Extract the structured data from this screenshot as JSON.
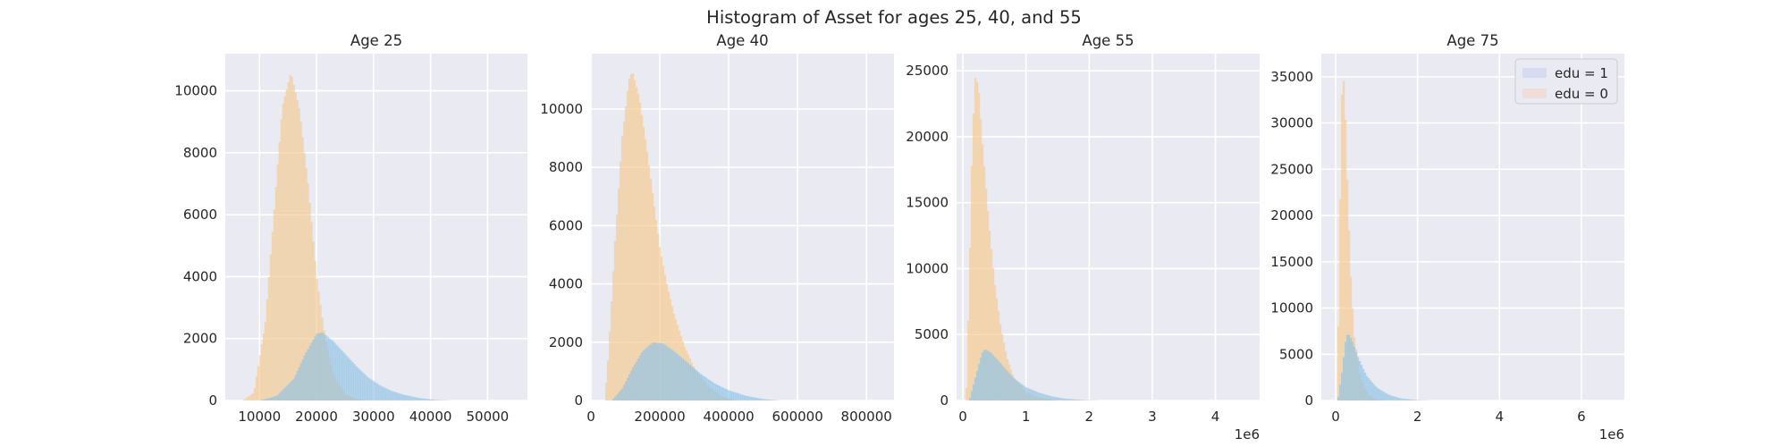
{
  "figure": {
    "title": "Histogram of Asset for ages 25, 40, and 55"
  },
  "colors": {
    "edu1_fill": "#8ec3e6",
    "edu0_fill": "#f5c98e",
    "overlap_tone": "#b5bc96",
    "legend_swatch_edu1": "#d7dbf0",
    "legend_swatch_edu0": "#f0ddd8"
  },
  "chart_data": [
    {
      "type": "histogram",
      "title": "Age 25",
      "xlabel": "",
      "ylabel": "",
      "xlim": [
        4000,
        57000
      ],
      "ylim": [
        0,
        11200
      ],
      "xticks": [
        10000,
        20000,
        30000,
        40000,
        50000
      ],
      "xtick_labels": [
        "10000",
        "20000",
        "30000",
        "40000",
        "50000"
      ],
      "yticks": [
        0,
        2000,
        4000,
        6000,
        8000,
        10000
      ],
      "ytick_labels": [
        "0",
        "2000",
        "4000",
        "6000",
        "8000",
        "10000"
      ],
      "offset_label": "",
      "grid": true,
      "series": [
        {
          "name": "edu = 0",
          "peak_x": 15500,
          "peak_count": 10600,
          "x": [
            7000,
            9000,
            11000,
            12500,
            14000,
            15500,
            17000,
            18500,
            20000,
            21500,
            23000,
            25000,
            27000,
            29000
          ],
          "counts": [
            0,
            250,
            2500,
            6000,
            9500,
            10600,
            9400,
            7000,
            4000,
            2000,
            800,
            200,
            50,
            0
          ]
        },
        {
          "name": "edu = 1",
          "peak_x": 20500,
          "peak_count": 2200,
          "x": [
            10000,
            13000,
            16000,
            18000,
            20000,
            21000,
            23000,
            25000,
            27000,
            29000,
            31000,
            33000,
            35000,
            38000,
            41000,
            44000
          ],
          "counts": [
            0,
            150,
            700,
            1500,
            2150,
            2200,
            1900,
            1500,
            1100,
            750,
            500,
            320,
            200,
            80,
            20,
            0
          ]
        }
      ],
      "legend": null
    },
    {
      "type": "histogram",
      "title": "Age 40",
      "xlabel": "",
      "ylabel": "",
      "xlim": [
        0,
        880000
      ],
      "ylim": [
        0,
        11900
      ],
      "xticks": [
        0,
        200000,
        400000,
        600000,
        800000
      ],
      "xtick_labels": [
        "0",
        "200000",
        "400000",
        "600000",
        "800000"
      ],
      "yticks": [
        0,
        2000,
        4000,
        6000,
        8000,
        10000
      ],
      "ytick_labels": [
        "0",
        "2000",
        "4000",
        "6000",
        "8000",
        "10000"
      ],
      "offset_label": "",
      "grid": true,
      "series": [
        {
          "name": "edu = 0",
          "peak_x": 120000,
          "peak_count": 11300,
          "x": [
            40000,
            50000,
            70000,
            90000,
            110000,
            120000,
            140000,
            160000,
            180000,
            200000,
            220000,
            240000,
            270000,
            300000,
            340000,
            380000,
            420000
          ],
          "counts": [
            0,
            1500,
            5500,
            9000,
            11000,
            11300,
            10400,
            8800,
            7000,
            5200,
            4000,
            3000,
            1900,
            1100,
            500,
            150,
            0
          ]
        },
        {
          "name": "edu = 1",
          "peak_x": 180000,
          "peak_count": 2000,
          "x": [
            60000,
            90000,
            120000,
            150000,
            180000,
            210000,
            240000,
            280000,
            320000,
            360000,
            400000,
            450000,
            500000,
            550000
          ],
          "counts": [
            0,
            400,
            1100,
            1700,
            2000,
            1950,
            1700,
            1300,
            900,
            580,
            350,
            160,
            50,
            0
          ]
        }
      ],
      "legend": null
    },
    {
      "type": "histogram",
      "title": "Age 55",
      "xlabel": "",
      "ylabel": "",
      "xlim": [
        -0.1,
        4.7
      ],
      "ylim": [
        0,
        26300
      ],
      "xticks": [
        0,
        1,
        2,
        3,
        4
      ],
      "xtick_labels": [
        "0",
        "1",
        "2",
        "3",
        "4"
      ],
      "yticks": [
        0,
        5000,
        10000,
        15000,
        20000,
        25000
      ],
      "ytick_labels": [
        "0",
        "5000",
        "10000",
        "15000",
        "20000",
        "25000"
      ],
      "offset_label": "1e6",
      "grid": true,
      "series": [
        {
          "name": "edu = 0",
          "peak_x": 0.2,
          "peak_count": 24800,
          "x": [
            0.05,
            0.1,
            0.15,
            0.2,
            0.25,
            0.3,
            0.4,
            0.5,
            0.6,
            0.7,
            0.8,
            1.0,
            1.2,
            1.5
          ],
          "counts": [
            0,
            9000,
            20000,
            24800,
            23500,
            20000,
            14000,
            9000,
            5500,
            3200,
            1800,
            600,
            200,
            0
          ]
        },
        {
          "name": "edu = 1",
          "peak_x": 0.35,
          "peak_count": 3900,
          "x": [
            0.1,
            0.2,
            0.3,
            0.35,
            0.45,
            0.6,
            0.8,
            1.0,
            1.2,
            1.4,
            1.6,
            1.9,
            2.2
          ],
          "counts": [
            0,
            1800,
            3600,
            3900,
            3600,
            2800,
            1700,
            1000,
            600,
            320,
            150,
            40,
            0
          ]
        }
      ],
      "legend": null
    },
    {
      "type": "histogram",
      "title": "Age 75",
      "xlabel": "",
      "ylabel": "",
      "xlim": [
        -0.35,
        7.05
      ],
      "ylim": [
        0,
        37500
      ],
      "xticks": [
        0,
        2,
        4,
        6
      ],
      "xtick_labels": [
        "0",
        "2",
        "4",
        "6"
      ],
      "yticks": [
        0,
        5000,
        10000,
        15000,
        20000,
        25000,
        30000,
        35000
      ],
      "ytick_labels": [
        "0",
        "5000",
        "10000",
        "15000",
        "20000",
        "25000",
        "30000",
        "35000"
      ],
      "offset_label": "1e6",
      "grid": true,
      "series": [
        {
          "name": "edu = 0",
          "peak_x": 0.17,
          "peak_count": 36000,
          "x": [
            0.03,
            0.08,
            0.13,
            0.17,
            0.22,
            0.28,
            0.36,
            0.45,
            0.6,
            0.8,
            1.0,
            1.2
          ],
          "counts": [
            0,
            12000,
            30000,
            36000,
            33000,
            24000,
            14000,
            7000,
            2500,
            600,
            100,
            0
          ]
        },
        {
          "name": "edu = 1",
          "peak_x": 0.3,
          "peak_count": 7300,
          "x": [
            0.05,
            0.15,
            0.25,
            0.3,
            0.4,
            0.55,
            0.75,
            1.0,
            1.3,
            1.6,
            2.0,
            2.4
          ],
          "counts": [
            0,
            3000,
            6800,
            7300,
            6500,
            4600,
            2700,
            1400,
            600,
            220,
            50,
            0
          ]
        }
      ],
      "legend": {
        "placement": "top-right",
        "entries": [
          {
            "label": "edu = 1",
            "swatch": "#d7dbf0"
          },
          {
            "label": "edu = 0",
            "swatch": "#f0ddd8"
          }
        ]
      }
    }
  ]
}
